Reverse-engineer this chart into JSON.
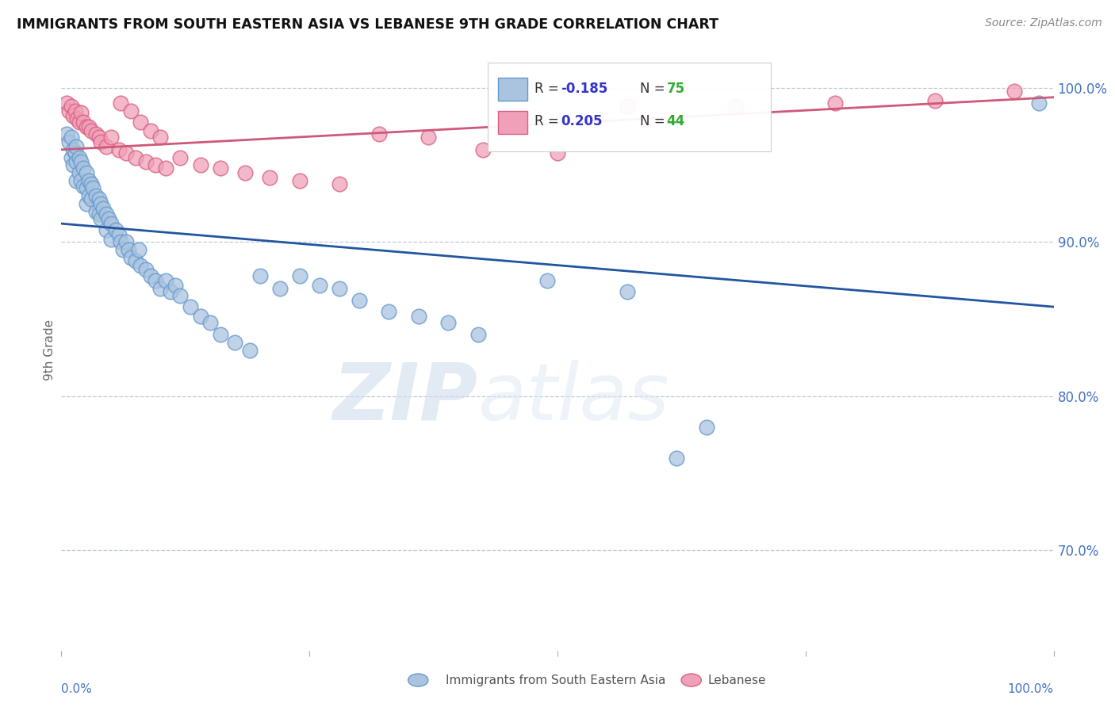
{
  "title": "IMMIGRANTS FROM SOUTH EASTERN ASIA VS LEBANESE 9TH GRADE CORRELATION CHART",
  "source": "Source: ZipAtlas.com",
  "ylabel": "9th Grade",
  "xlim": [
    0.0,
    1.0
  ],
  "ylim": [
    0.635,
    1.025
  ],
  "yticks": [
    0.7,
    0.8,
    0.9,
    1.0
  ],
  "ytick_labels": [
    "70.0%",
    "80.0%",
    "90.0%",
    "100.0%"
  ],
  "blue_color": "#aac4e0",
  "blue_edge_color": "#6699cc",
  "pink_color": "#f0a0b8",
  "pink_edge_color": "#d96080",
  "blue_line_color": "#2255a0",
  "pink_line_color": "#d05878",
  "blue_line_x0": 0.0,
  "blue_line_y0": 0.912,
  "blue_line_x1": 1.0,
  "blue_line_y1": 0.858,
  "pink_line_x0": 0.0,
  "pink_line_y0": 0.96,
  "pink_line_x1": 1.0,
  "pink_line_y1": 0.994,
  "blue_scatter_x": [
    0.005,
    0.008,
    0.01,
    0.01,
    0.012,
    0.012,
    0.014,
    0.015,
    0.015,
    0.015,
    0.018,
    0.018,
    0.02,
    0.02,
    0.022,
    0.022,
    0.025,
    0.025,
    0.025,
    0.028,
    0.028,
    0.03,
    0.03,
    0.032,
    0.035,
    0.035,
    0.038,
    0.038,
    0.04,
    0.04,
    0.042,
    0.045,
    0.045,
    0.048,
    0.05,
    0.05,
    0.055,
    0.058,
    0.06,
    0.062,
    0.065,
    0.068,
    0.07,
    0.075,
    0.078,
    0.08,
    0.085,
    0.09,
    0.095,
    0.1,
    0.105,
    0.11,
    0.115,
    0.12,
    0.13,
    0.14,
    0.15,
    0.16,
    0.175,
    0.19,
    0.2,
    0.22,
    0.24,
    0.26,
    0.28,
    0.3,
    0.33,
    0.36,
    0.39,
    0.42,
    0.49,
    0.57,
    0.62,
    0.985,
    0.65
  ],
  "blue_scatter_y": [
    0.97,
    0.965,
    0.968,
    0.955,
    0.96,
    0.95,
    0.958,
    0.962,
    0.952,
    0.94,
    0.955,
    0.945,
    0.952,
    0.94,
    0.948,
    0.936,
    0.945,
    0.935,
    0.925,
    0.94,
    0.93,
    0.938,
    0.928,
    0.935,
    0.93,
    0.92,
    0.928,
    0.918,
    0.925,
    0.915,
    0.922,
    0.918,
    0.908,
    0.915,
    0.912,
    0.902,
    0.908,
    0.905,
    0.9,
    0.895,
    0.9,
    0.895,
    0.89,
    0.888,
    0.895,
    0.885,
    0.882,
    0.878,
    0.875,
    0.87,
    0.875,
    0.868,
    0.872,
    0.865,
    0.858,
    0.852,
    0.848,
    0.84,
    0.835,
    0.83,
    0.878,
    0.87,
    0.878,
    0.872,
    0.87,
    0.862,
    0.855,
    0.852,
    0.848,
    0.84,
    0.875,
    0.868,
    0.76,
    0.99,
    0.78
  ],
  "pink_scatter_x": [
    0.005,
    0.008,
    0.01,
    0.012,
    0.014,
    0.016,
    0.018,
    0.02,
    0.022,
    0.025,
    0.028,
    0.03,
    0.035,
    0.038,
    0.04,
    0.045,
    0.05,
    0.058,
    0.065,
    0.075,
    0.085,
    0.095,
    0.105,
    0.12,
    0.14,
    0.16,
    0.185,
    0.21,
    0.24,
    0.28,
    0.32,
    0.37,
    0.425,
    0.5,
    0.57,
    0.68,
    0.78,
    0.88,
    0.96,
    0.06,
    0.07,
    0.08,
    0.09,
    0.1
  ],
  "pink_scatter_y": [
    0.99,
    0.985,
    0.988,
    0.982,
    0.985,
    0.98,
    0.978,
    0.984,
    0.978,
    0.975,
    0.975,
    0.972,
    0.97,
    0.968,
    0.965,
    0.962,
    0.968,
    0.96,
    0.958,
    0.955,
    0.952,
    0.95,
    0.948,
    0.955,
    0.95,
    0.948,
    0.945,
    0.942,
    0.94,
    0.938,
    0.97,
    0.968,
    0.96,
    0.958,
    0.988,
    0.988,
    0.99,
    0.992,
    0.998,
    0.99,
    0.985,
    0.978,
    0.972,
    0.968
  ],
  "watermark_zip": "ZIP",
  "watermark_atlas": "atlas"
}
